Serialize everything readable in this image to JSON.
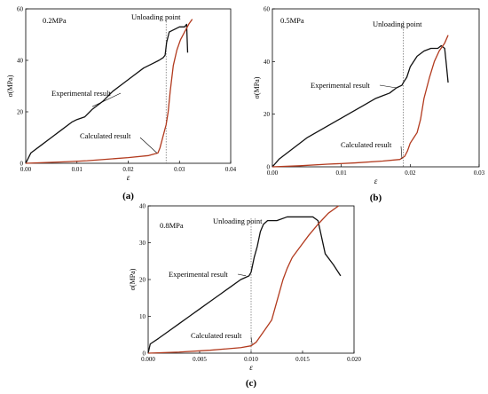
{
  "colors": {
    "experimental": "#111111",
    "calculated": "#b23a1e",
    "axis": "#000000",
    "guide": "#666666"
  },
  "chart_data": [
    {
      "type": "line",
      "panel_label": "0.2MPa",
      "caption": "(a)",
      "xlabel": "ε",
      "ylabel": "σ(MPa)",
      "xlim": [
        0,
        0.04
      ],
      "ylim": [
        0,
        60
      ],
      "xticks": [
        0,
        0.01,
        0.02,
        0.03,
        0.04
      ],
      "xtick_labels": [
        "0.00",
        "0.01",
        "0.02",
        "0.03",
        "0.04"
      ],
      "yticks": [
        0,
        20,
        40,
        60
      ],
      "ytick_labels": [
        "0",
        "20",
        "40",
        "60"
      ],
      "unloading_x": 0.0274,
      "annotations": {
        "unloading": "Unloading point",
        "experimental": "Experimental result",
        "calculated": "Calculated result"
      },
      "series": [
        {
          "key": "experimental",
          "points": [
            [
              0,
              0
            ],
            [
              0.0005,
              2
            ],
            [
              0.001,
              4
            ],
            [
              0.003,
              7
            ],
            [
              0.005,
              10
            ],
            [
              0.007,
              13
            ],
            [
              0.009,
              16
            ],
            [
              0.01,
              17
            ],
            [
              0.0115,
              18
            ],
            [
              0.013,
              21
            ],
            [
              0.015,
              24
            ],
            [
              0.017,
              28
            ],
            [
              0.019,
              31
            ],
            [
              0.021,
              34
            ],
            [
              0.023,
              37
            ],
            [
              0.025,
              39
            ],
            [
              0.026,
              40
            ],
            [
              0.0268,
              41
            ],
            [
              0.0272,
              42
            ],
            [
              0.0275,
              47
            ],
            [
              0.028,
              51
            ],
            [
              0.029,
              52
            ],
            [
              0.03,
              53
            ],
            [
              0.031,
              53
            ],
            [
              0.0314,
              54
            ],
            [
              0.0316,
              43
            ]
          ]
        },
        {
          "key": "calculated",
          "points": [
            [
              0,
              0
            ],
            [
              0.004,
              0.3
            ],
            [
              0.008,
              0.6
            ],
            [
              0.012,
              1
            ],
            [
              0.016,
              1.6
            ],
            [
              0.02,
              2.2
            ],
            [
              0.024,
              3
            ],
            [
              0.0258,
              4
            ],
            [
              0.0262,
              6
            ],
            [
              0.0266,
              9
            ],
            [
              0.027,
              12
            ],
            [
              0.0274,
              15
            ],
            [
              0.0278,
              20
            ],
            [
              0.0282,
              28
            ],
            [
              0.0288,
              38
            ],
            [
              0.0295,
              44
            ],
            [
              0.0302,
              48
            ],
            [
              0.031,
              51
            ],
            [
              0.0318,
              54
            ],
            [
              0.0325,
              56
            ]
          ]
        }
      ]
    },
    {
      "type": "line",
      "panel_label": "0.5MPa",
      "caption": "(b)",
      "xlabel": "ε",
      "ylabel": "σ(MPa)",
      "xlim": [
        0,
        0.03
      ],
      "ylim": [
        0,
        60
      ],
      "xticks": [
        0,
        0.01,
        0.02,
        0.03
      ],
      "xtick_labels": [
        "0.00",
        "0.01",
        "0.02",
        "0.03"
      ],
      "yticks": [
        0,
        20,
        40,
        60
      ],
      "ytick_labels": [
        "0",
        "20",
        "40",
        "60"
      ],
      "unloading_x": 0.019,
      "annotations": {
        "unloading": "Unloading point",
        "experimental": "Experimental result",
        "calculated": "Calculated result"
      },
      "series": [
        {
          "key": "experimental",
          "points": [
            [
              0,
              0
            ],
            [
              0.001,
              3
            ],
            [
              0.003,
              7
            ],
            [
              0.005,
              11
            ],
            [
              0.007,
              14
            ],
            [
              0.009,
              17
            ],
            [
              0.011,
              20
            ],
            [
              0.013,
              23
            ],
            [
              0.015,
              26
            ],
            [
              0.016,
              27
            ],
            [
              0.017,
              28
            ],
            [
              0.018,
              30
            ],
            [
              0.0188,
              31
            ],
            [
              0.019,
              32
            ],
            [
              0.0195,
              34
            ],
            [
              0.02,
              38
            ],
            [
              0.021,
              42
            ],
            [
              0.022,
              44
            ],
            [
              0.023,
              45
            ],
            [
              0.024,
              45
            ],
            [
              0.0245,
              46
            ],
            [
              0.025,
              45
            ],
            [
              0.0252,
              40
            ],
            [
              0.0255,
              32
            ]
          ]
        },
        {
          "key": "calculated",
          "points": [
            [
              0,
              0
            ],
            [
              0.004,
              0.4
            ],
            [
              0.008,
              1
            ],
            [
              0.012,
              1.5
            ],
            [
              0.016,
              2.2
            ],
            [
              0.0185,
              2.8
            ],
            [
              0.0192,
              4
            ],
            [
              0.0196,
              6
            ],
            [
              0.02,
              9
            ],
            [
              0.0205,
              11
            ],
            [
              0.021,
              13
            ],
            [
              0.0215,
              18
            ],
            [
              0.022,
              26
            ],
            [
              0.0228,
              34
            ],
            [
              0.0235,
              40
            ],
            [
              0.0242,
              44
            ],
            [
              0.025,
              47
            ],
            [
              0.0255,
              50
            ]
          ]
        }
      ]
    },
    {
      "type": "line",
      "panel_label": "0.8MPa",
      "caption": "(c)",
      "xlabel": "ε",
      "ylabel": "σ(MPa)",
      "xlim": [
        0,
        0.02
      ],
      "ylim": [
        0,
        40
      ],
      "xticks": [
        0,
        0.005,
        0.01,
        0.015,
        0.02
      ],
      "xtick_labels": [
        "0.000",
        "0.005",
        "0.010",
        "0.015",
        "0.020"
      ],
      "yticks": [
        0,
        10,
        20,
        30,
        40
      ],
      "ytick_labels": [
        "0",
        "10",
        "20",
        "30",
        "40"
      ],
      "unloading_x": 0.01,
      "annotations": {
        "unloading": "Unloading point",
        "experimental": "Experimental result",
        "calculated": "Calculated result"
      },
      "series": [
        {
          "key": "experimental",
          "points": [
            [
              0,
              0
            ],
            [
              0.0002,
              2.5
            ],
            [
              0.001,
              4
            ],
            [
              0.002,
              6
            ],
            [
              0.003,
              8
            ],
            [
              0.004,
              10
            ],
            [
              0.005,
              12
            ],
            [
              0.006,
              14
            ],
            [
              0.007,
              16
            ],
            [
              0.008,
              18
            ],
            [
              0.009,
              20
            ],
            [
              0.0098,
              21
            ],
            [
              0.01,
              22
            ],
            [
              0.0103,
              26
            ],
            [
              0.0106,
              29
            ],
            [
              0.0109,
              33
            ],
            [
              0.0112,
              35
            ],
            [
              0.0116,
              36
            ],
            [
              0.0125,
              36
            ],
            [
              0.0135,
              37
            ],
            [
              0.015,
              37
            ],
            [
              0.016,
              37
            ],
            [
              0.0165,
              36
            ],
            [
              0.0172,
              27
            ],
            [
              0.018,
              24
            ],
            [
              0.0187,
              21
            ]
          ]
        },
        {
          "key": "calculated",
          "points": [
            [
              0,
              0
            ],
            [
              0.003,
              0.3
            ],
            [
              0.006,
              0.8
            ],
            [
              0.009,
              1.5
            ],
            [
              0.01,
              2
            ],
            [
              0.0105,
              3
            ],
            [
              0.011,
              5
            ],
            [
              0.0115,
              7
            ],
            [
              0.012,
              9
            ],
            [
              0.0123,
              12
            ],
            [
              0.0127,
              16
            ],
            [
              0.0131,
              20
            ],
            [
              0.0135,
              23
            ],
            [
              0.014,
              26
            ],
            [
              0.0148,
              29
            ],
            [
              0.0156,
              32
            ],
            [
              0.0165,
              35
            ],
            [
              0.0175,
              38
            ],
            [
              0.0185,
              40
            ]
          ]
        }
      ]
    }
  ]
}
